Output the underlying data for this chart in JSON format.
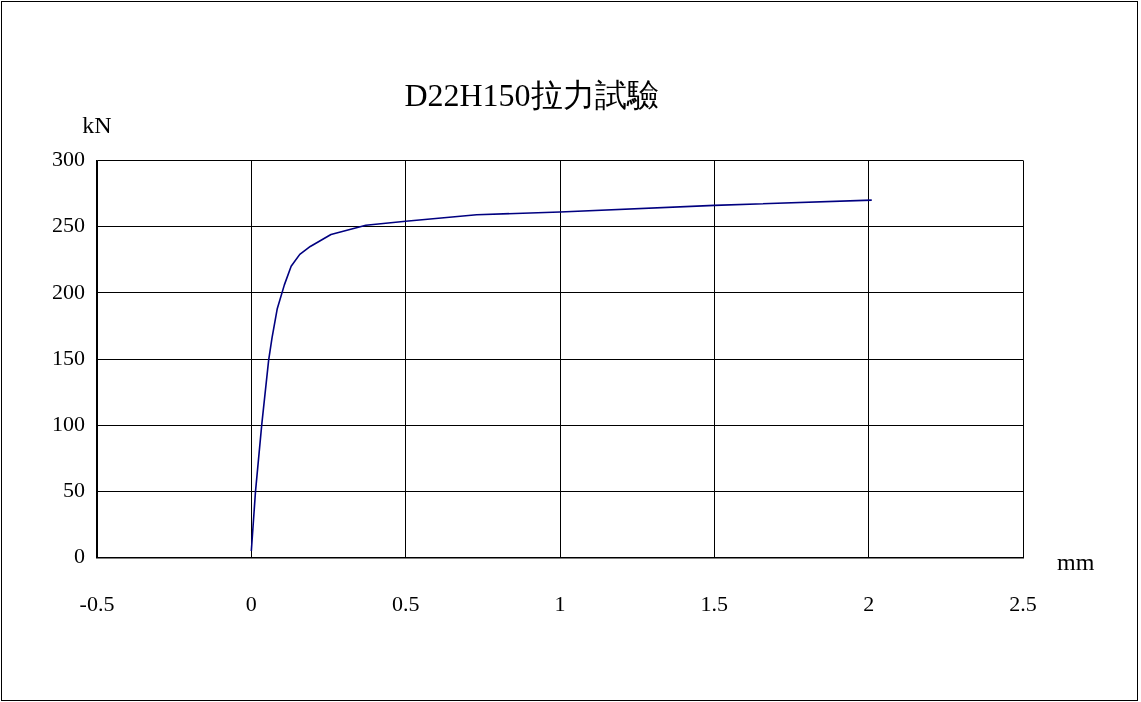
{
  "chart_data": {
    "type": "line",
    "title": "D22H150拉力試驗",
    "xlabel": "mm",
    "ylabel": "kN",
    "series": [
      {
        "color": "#000080",
        "x": [
          0,
          0.0135,
          0.034,
          0.056,
          0.067,
          0.084,
          0.107,
          0.129,
          0.157,
          0.191,
          0.258,
          0.371,
          0.5,
          0.73,
          1.0,
          1.5,
          2.01
        ],
        "values": [
          5,
          50,
          101,
          149,
          166,
          188,
          206,
          220,
          229,
          235,
          244,
          251,
          254,
          259,
          261,
          266,
          270
        ]
      }
    ],
    "xlim": [
      -0.5,
      2.5
    ],
    "xticks": [
      -0.5,
      0,
      0.5,
      1,
      1.5,
      2,
      2.5
    ],
    "ylim": [
      0,
      300
    ],
    "yticks": [
      0,
      50,
      100,
      150,
      200,
      250,
      300
    ],
    "grid": true,
    "legend": false,
    "marker": "none",
    "line_style": "solid"
  }
}
